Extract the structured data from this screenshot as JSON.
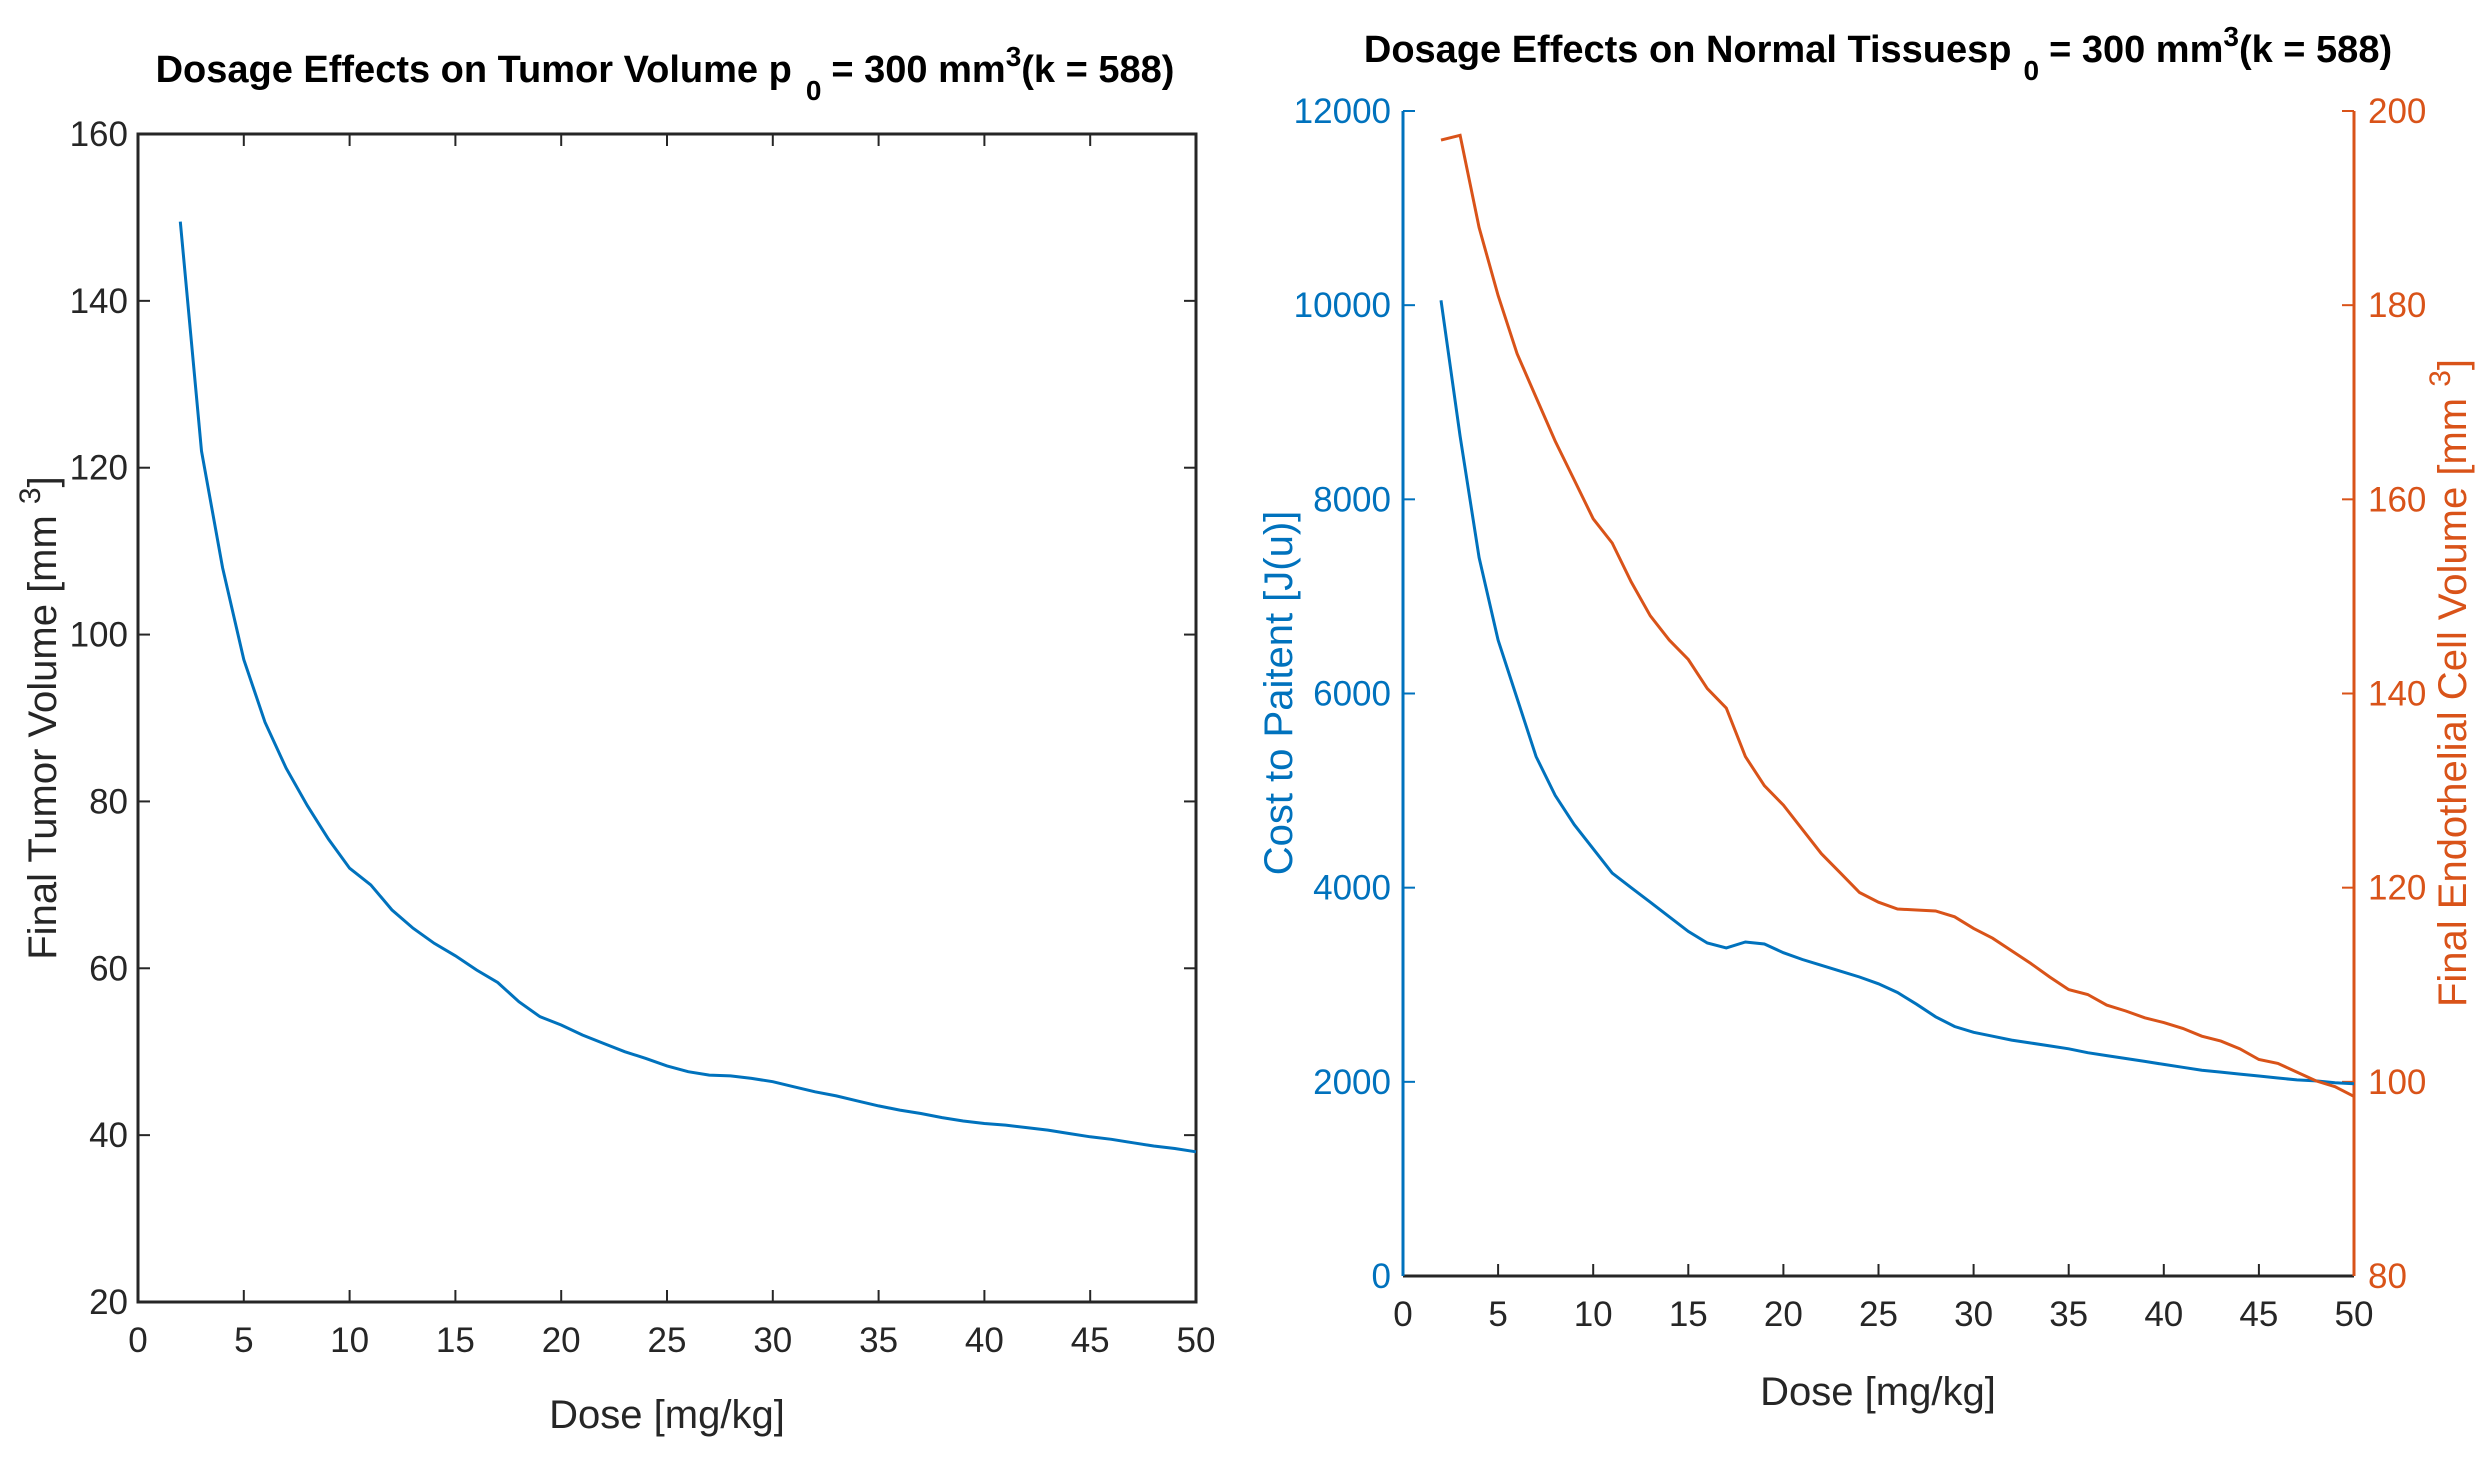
{
  "colors": {
    "blue": "#0072BD",
    "orange": "#D95319",
    "axis": "#262626"
  },
  "chart_data": [
    {
      "type": "line",
      "title": "Dosage Effects on Tumor Volume p  = 300 mm (k = 588)",
      "title_parts": {
        "pre": "Dosage Effects on Tumor Volume p",
        "sub": "0",
        "mid": "= 300 mm",
        "sup": "3",
        "post": "(k = 588)"
      },
      "xlabel": "Dose [mg/kg]",
      "ylabel": "Final Tumor Volume [mm 3]",
      "ylabel_parts": {
        "pre": "Final Tumor Volume [mm ",
        "sup": "3",
        "post": "]"
      },
      "xlim": [
        0,
        50
      ],
      "ylim": [
        20,
        160
      ],
      "xticks": [
        0,
        5,
        10,
        15,
        20,
        25,
        30,
        35,
        40,
        45,
        50
      ],
      "yticks": [
        20,
        40,
        60,
        80,
        100,
        120,
        140,
        160
      ],
      "grid": false,
      "series": [
        {
          "name": "Final Tumor Volume",
          "x": [
            2,
            3,
            4,
            5,
            6,
            7,
            8,
            9,
            10,
            11,
            12,
            13,
            14,
            15,
            16,
            17,
            18,
            19,
            20,
            21,
            22,
            23,
            24,
            25,
            26,
            27,
            28,
            29,
            30,
            31,
            32,
            33,
            34,
            35,
            36,
            37,
            38,
            39,
            40,
            41,
            42,
            43,
            44,
            45,
            46,
            47,
            48,
            49,
            50
          ],
          "y": [
            149.5,
            122,
            108,
            97,
            89.5,
            84,
            79.5,
            75.5,
            72,
            70,
            67,
            64.8,
            63,
            61.5,
            59.8,
            58.3,
            56,
            54.2,
            53.2,
            52,
            51,
            50,
            49.2,
            48.3,
            47.6,
            47.2,
            47.1,
            46.8,
            46.4,
            45.8,
            45.2,
            44.7,
            44.1,
            43.5,
            43,
            42.6,
            42.1,
            41.7,
            41.4,
            41.2,
            40.9,
            40.6,
            40.2,
            39.8,
            39.5,
            39.1,
            38.7,
            38.4,
            38
          ]
        }
      ]
    },
    {
      "type": "line",
      "title": "Dosage Effects on Normal Tissuesp  = 300 mm (k = 588)",
      "title_parts": {
        "pre": "Dosage Effects on Normal Tissuesp",
        "sub": "0",
        "mid": "= 300 mm",
        "sup": "3",
        "post": "(k = 588)"
      },
      "xlabel": "Dose [mg/kg]",
      "ylabel": "Cost to Paitent [J(u)]",
      "ylabel_right": "Final Endothelial Cell Volume [mm 3]",
      "ylabel_right_parts": {
        "pre": "Final Endothelial Cell Volume [mm ",
        "sup": "3",
        "post": "]"
      },
      "xlim": [
        0,
        50
      ],
      "ylim": [
        0,
        12000
      ],
      "ylim_right": [
        80,
        200
      ],
      "xticks": [
        0,
        5,
        10,
        15,
        20,
        25,
        30,
        35,
        40,
        45,
        50
      ],
      "yticks": [
        0,
        2000,
        4000,
        6000,
        8000,
        10000,
        12000
      ],
      "yticks_right": [
        80,
        100,
        120,
        140,
        160,
        180,
        200
      ],
      "grid": false,
      "series": [
        {
          "name": "Cost to Paitent",
          "axis": "left",
          "x": [
            2,
            3,
            4,
            5,
            6,
            7,
            8,
            9,
            10,
            11,
            12,
            13,
            14,
            15,
            16,
            17,
            18,
            19,
            20,
            21,
            22,
            23,
            24,
            25,
            26,
            27,
            28,
            29,
            30,
            31,
            32,
            33,
            34,
            35,
            36,
            37,
            38,
            39,
            40,
            41,
            42,
            43,
            44,
            45,
            46,
            47,
            48,
            49,
            50
          ],
          "y": [
            10050,
            8650,
            7400,
            6550,
            5950,
            5350,
            4950,
            4650,
            4400,
            4150,
            4000,
            3850,
            3700,
            3550,
            3430,
            3380,
            3440,
            3420,
            3330,
            3260,
            3200,
            3140,
            3080,
            3010,
            2920,
            2800,
            2670,
            2570,
            2510,
            2470,
            2430,
            2400,
            2370,
            2340,
            2300,
            2270,
            2240,
            2210,
            2180,
            2150,
            2120,
            2100,
            2080,
            2060,
            2040,
            2020,
            2010,
            1990,
            1980
          ]
        },
        {
          "name": "Final Endothelial Cell Volume",
          "axis": "right",
          "x": [
            2,
            3,
            4,
            5,
            6,
            7,
            8,
            9,
            10,
            11,
            12,
            13,
            14,
            15,
            16,
            17,
            18,
            19,
            20,
            21,
            22,
            23,
            24,
            25,
            26,
            27,
            28,
            29,
            30,
            31,
            32,
            33,
            34,
            35,
            36,
            37,
            38,
            39,
            40,
            41,
            42,
            43,
            44,
            45,
            46,
            47,
            48,
            49,
            50
          ],
          "y": [
            197,
            197.5,
            188,
            181,
            175,
            170.5,
            166,
            162,
            158,
            155.5,
            151.5,
            148,
            145.5,
            143.5,
            140.5,
            138.5,
            133.5,
            130.5,
            128.5,
            126,
            123.5,
            121.5,
            119.5,
            118.5,
            117.8,
            117.7,
            117.6,
            117,
            115.8,
            114.8,
            113.5,
            112.2,
            110.8,
            109.5,
            109,
            107.9,
            107.3,
            106.6,
            106.1,
            105.5,
            104.7,
            104.2,
            103.4,
            102.3,
            101.9,
            101,
            100.1,
            99.5,
            98.5
          ]
        }
      ]
    }
  ]
}
